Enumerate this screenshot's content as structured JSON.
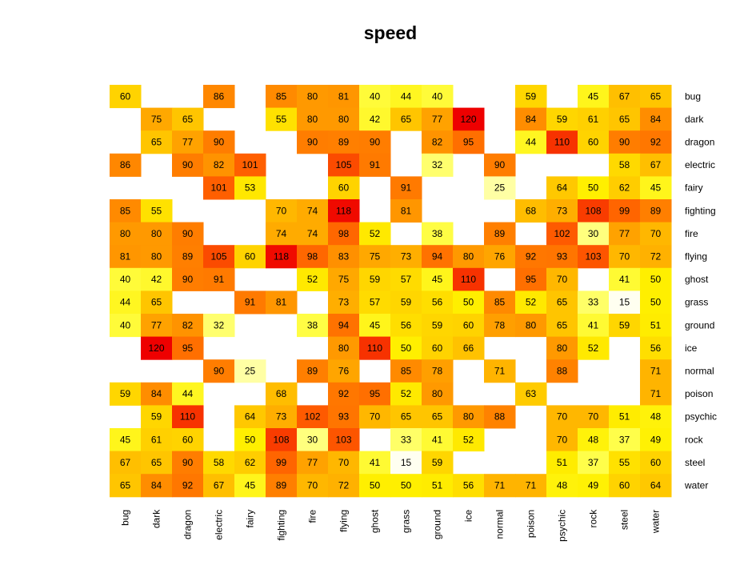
{
  "chart_data": {
    "type": "heatmap",
    "title": "speed",
    "xlabel": "",
    "ylabel": "",
    "x_categories": [
      "bug",
      "dark",
      "dragon",
      "electric",
      "fairy",
      "fighting",
      "fire",
      "flying",
      "ghost",
      "grass",
      "ground",
      "ice",
      "normal",
      "poison",
      "psychic",
      "rock",
      "steel",
      "water"
    ],
    "y_categories": [
      "bug",
      "dark",
      "dragon",
      "electric",
      "fairy",
      "fighting",
      "fire",
      "flying",
      "ghost",
      "grass",
      "ground",
      "ice",
      "normal",
      "poison",
      "psychic",
      "rock",
      "steel",
      "water"
    ],
    "values": [
      [
        60,
        null,
        null,
        86,
        null,
        85,
        80,
        81,
        40,
        44,
        40,
        null,
        null,
        59,
        null,
        45,
        67,
        65
      ],
      [
        null,
        75,
        65,
        null,
        null,
        55,
        80,
        80,
        42,
        65,
        77,
        120,
        null,
        84,
        59,
        61,
        65,
        84
      ],
      [
        null,
        65,
        77,
        90,
        null,
        null,
        90,
        89,
        90,
        null,
        82,
        95,
        null,
        44,
        110,
        60,
        90,
        92
      ],
      [
        86,
        null,
        90,
        82,
        101,
        null,
        null,
        105,
        91,
        null,
        32,
        null,
        90,
        null,
        null,
        null,
        58,
        67
      ],
      [
        null,
        null,
        null,
        101,
        53,
        null,
        null,
        60,
        null,
        91,
        null,
        null,
        25,
        null,
        64,
        50,
        62,
        45
      ],
      [
        85,
        55,
        null,
        null,
        null,
        70,
        74,
        118,
        null,
        81,
        null,
        null,
        null,
        68,
        73,
        108,
        99,
        89
      ],
      [
        80,
        80,
        90,
        null,
        null,
        74,
        74,
        98,
        52,
        null,
        38,
        null,
        89,
        null,
        102,
        30,
        77,
        70
      ],
      [
        81,
        80,
        89,
        105,
        60,
        118,
        98,
        83,
        75,
        73,
        94,
        80,
        76,
        92,
        93,
        103,
        70,
        72
      ],
      [
        40,
        42,
        90,
        91,
        null,
        null,
        52,
        75,
        59,
        57,
        45,
        110,
        null,
        95,
        70,
        null,
        41,
        50
      ],
      [
        44,
        65,
        null,
        null,
        91,
        81,
        null,
        73,
        57,
        59,
        56,
        50,
        85,
        52,
        65,
        33,
        15,
        50
      ],
      [
        40,
        77,
        82,
        32,
        null,
        null,
        38,
        94,
        45,
        56,
        59,
        60,
        78,
        80,
        65,
        41,
        59,
        51
      ],
      [
        null,
        120,
        95,
        null,
        null,
        null,
        null,
        80,
        110,
        50,
        60,
        66,
        null,
        null,
        80,
        52,
        null,
        56
      ],
      [
        null,
        null,
        null,
        90,
        25,
        null,
        89,
        76,
        null,
        85,
        78,
        null,
        71,
        null,
        88,
        null,
        null,
        71
      ],
      [
        59,
        84,
        44,
        null,
        null,
        68,
        null,
        92,
        95,
        52,
        80,
        null,
        null,
        63,
        null,
        null,
        null,
        71
      ],
      [
        null,
        59,
        110,
        null,
        64,
        73,
        102,
        93,
        70,
        65,
        65,
        80,
        88,
        null,
        70,
        70,
        51,
        48
      ],
      [
        45,
        61,
        60,
        null,
        50,
        108,
        30,
        103,
        null,
        33,
        41,
        52,
        null,
        null,
        70,
        48,
        37,
        49
      ],
      [
        67,
        65,
        90,
        58,
        62,
        99,
        77,
        70,
        41,
        15,
        59,
        null,
        null,
        null,
        51,
        37,
        55,
        60
      ],
      [
        65,
        84,
        92,
        67,
        45,
        89,
        70,
        72,
        50,
        50,
        51,
        56,
        71,
        71,
        48,
        49,
        60,
        64
      ]
    ],
    "color_scale": {
      "name": "heat",
      "low": "#FFFFF0",
      "mid": "#FFFF00",
      "high": "#FF0000",
      "range": [
        15,
        120
      ]
    },
    "grid": false,
    "legend": "none"
  }
}
